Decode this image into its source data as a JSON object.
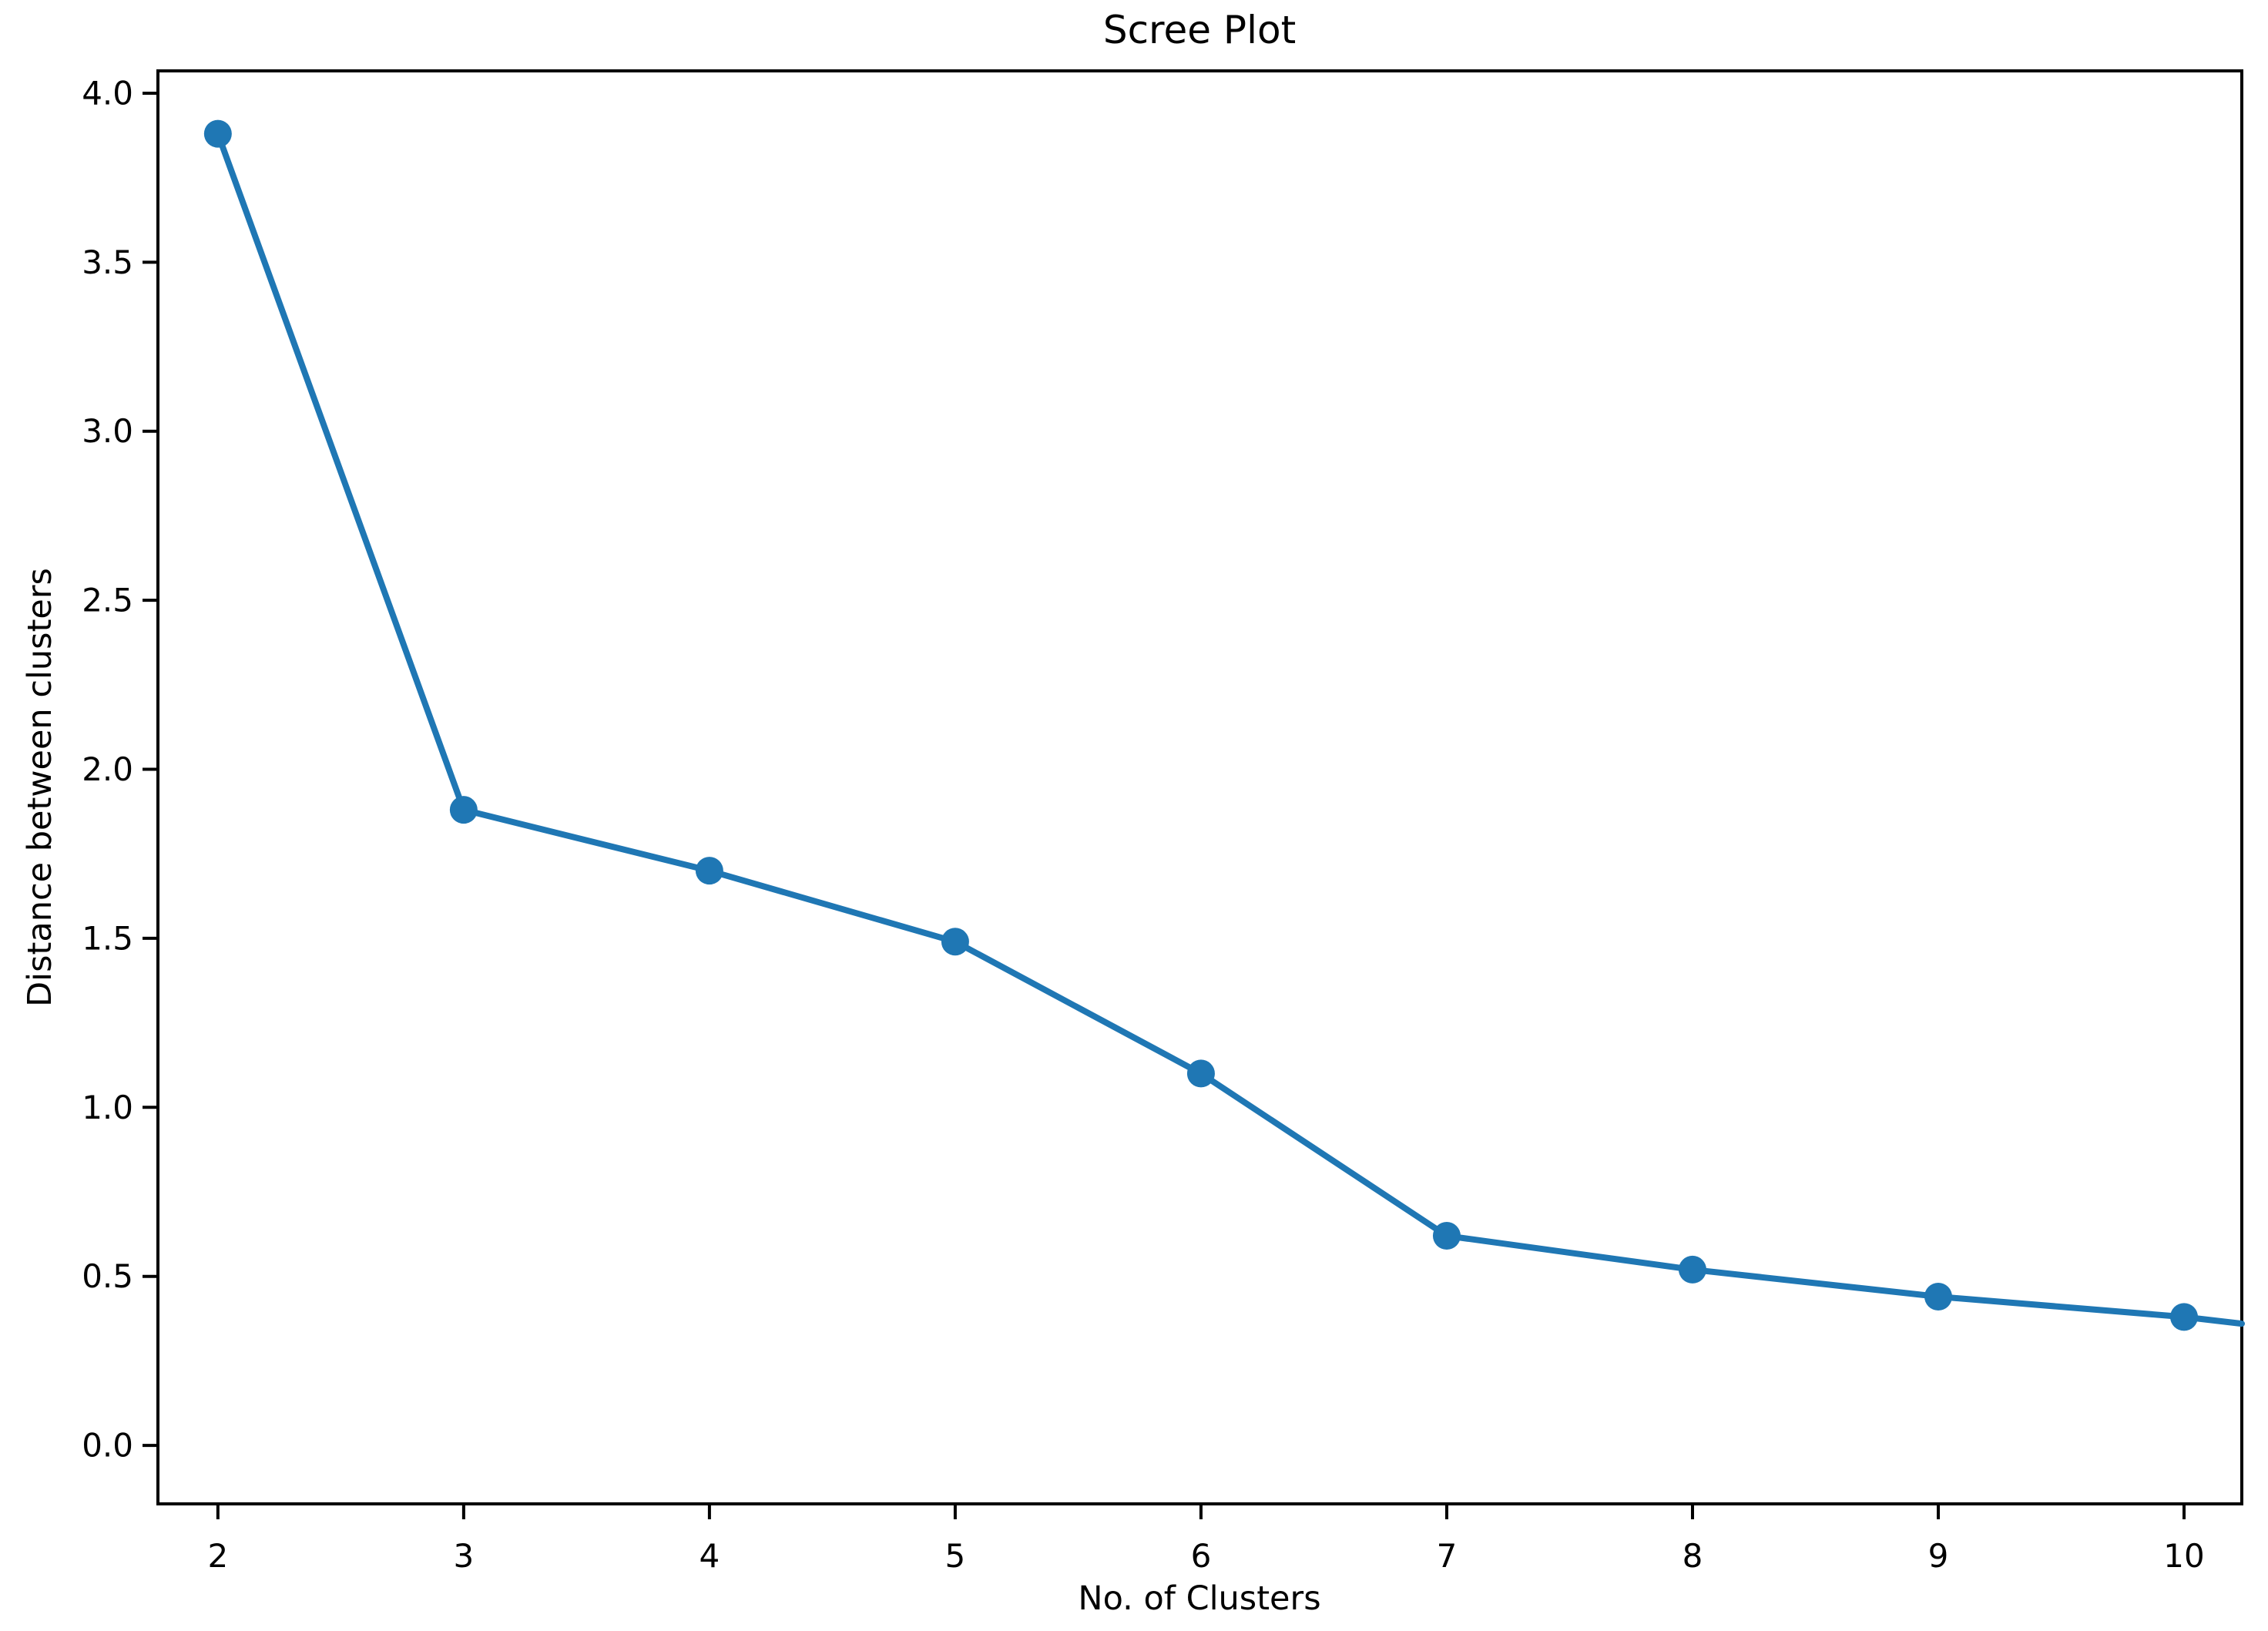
{
  "title": "Scree Plot",
  "colors": {
    "line": "#1f77b4",
    "marker": "#1f77b4",
    "axis": "#000000",
    "text": "#000000",
    "background": "#ffffff"
  },
  "chart_data": {
    "type": "line",
    "title": "Scree Plot",
    "xlabel": "No. of Clusters",
    "ylabel": "Distance between clusters",
    "x": [
      2,
      3,
      4,
      5,
      6,
      7,
      8,
      9,
      10
    ],
    "y": [
      3.88,
      1.88,
      1.7,
      1.49,
      1.1,
      0.62,
      0.52,
      0.44,
      0.38
    ],
    "x_tick_labels": [
      "2",
      "3",
      "4",
      "5",
      "6",
      "7",
      "8",
      "9",
      "10"
    ],
    "x_tick_values": [
      2,
      3,
      4,
      5,
      6,
      7,
      8,
      9,
      10
    ],
    "y_tick_labels": [
      "0.0",
      "0.5",
      "1.0",
      "1.5",
      "2.0",
      "2.5",
      "3.0",
      "3.5",
      "4.0"
    ],
    "y_tick_values": [
      0.0,
      0.5,
      1.0,
      1.5,
      2.0,
      2.5,
      3.0,
      3.5,
      4.0
    ],
    "xlim": [
      1.756,
      10.235
    ],
    "ylim": [
      -0.173,
      4.066
    ],
    "grid": false,
    "legend": "none",
    "marker": "circle",
    "clipped_segment_end": {
      "x": 10.235,
      "y": 0.36
    }
  }
}
